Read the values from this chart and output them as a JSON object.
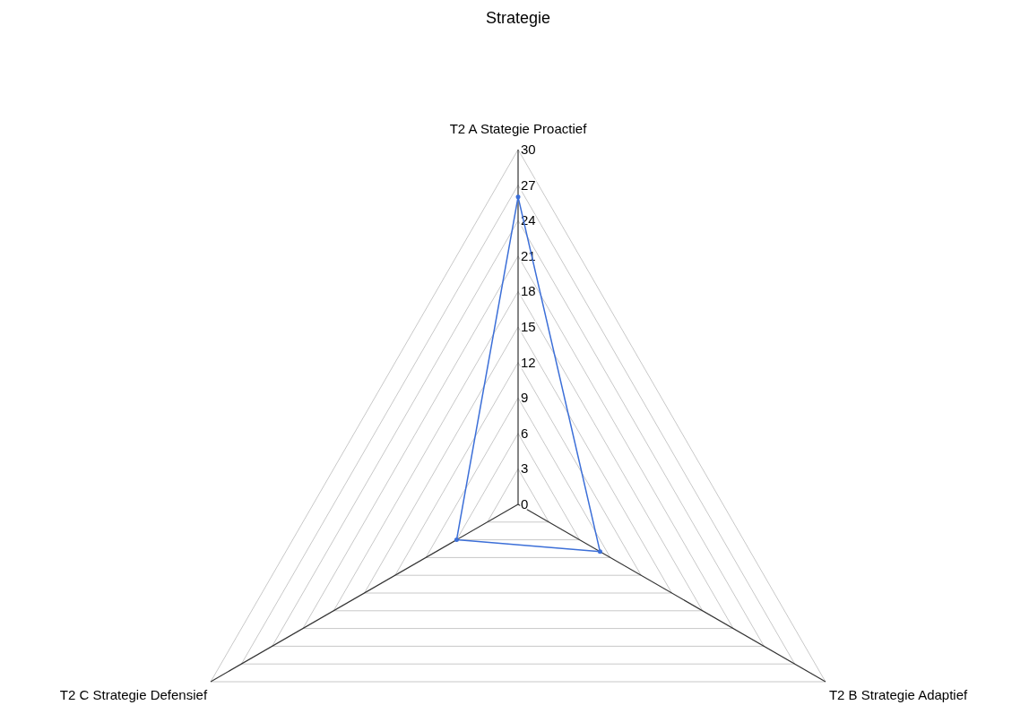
{
  "chart_data": {
    "type": "radar",
    "title": "Strategie",
    "categories": [
      "T2 A Stategie Proactief",
      "T2 B  Strategie Adaptief",
      "T2 C Strategie Defensief"
    ],
    "series": [
      {
        "color": "#3c6fd8",
        "values": [
          26,
          8,
          6
        ]
      }
    ],
    "ylim": [
      0,
      30
    ],
    "yticks": [
      0,
      3,
      6,
      9,
      12,
      15,
      18,
      21,
      24,
      27,
      30
    ],
    "grid": true,
    "marker": "circle",
    "line_style": "solid"
  }
}
